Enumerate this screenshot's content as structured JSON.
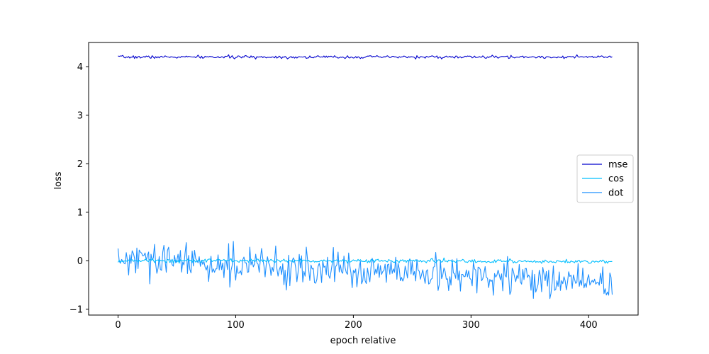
{
  "chart_data": {
    "type": "line",
    "title": "",
    "xlabel": "epoch relative",
    "ylabel": "loss",
    "xlim": [
      -25,
      442
    ],
    "ylim": [
      -1.12,
      4.5
    ],
    "xticks": [
      0,
      100,
      200,
      300,
      400
    ],
    "yticks": [
      -1,
      0,
      1,
      2,
      3,
      4
    ],
    "xtick_labels": [
      "0",
      "100",
      "200",
      "300",
      "400"
    ],
    "ytick_labels": [
      "−1",
      "0",
      "1",
      "2",
      "3",
      "4"
    ],
    "grid": false,
    "legend": {
      "placement": "center-right",
      "entries": [
        "mse",
        "cos",
        "dot"
      ]
    },
    "n_points": 421,
    "series": [
      {
        "name": "mse",
        "color": "#0000cd",
        "x_range": [
          0,
          420
        ],
        "approx_trend": {
          "x": [
            0,
            100,
            200,
            300,
            420
          ],
          "y": [
            4.2,
            4.2,
            4.2,
            4.2,
            4.2
          ]
        },
        "noise_amplitude": 0.015
      },
      {
        "name": "cos",
        "color": "#00bfff",
        "x_range": [
          0,
          420
        ],
        "approx_trend": {
          "x": [
            0,
            100,
            200,
            300,
            420
          ],
          "y": [
            0.0,
            0.0,
            0.0,
            -0.01,
            -0.02
          ]
        },
        "noise_amplitude": 0.02
      },
      {
        "name": "dot",
        "color": "#1e90ff",
        "x_range": [
          0,
          420
        ],
        "approx_trend": {
          "x": [
            0,
            50,
            100,
            150,
            200,
            250,
            300,
            350,
            420
          ],
          "y": [
            0.0,
            -0.02,
            -0.08,
            -0.15,
            -0.22,
            -0.28,
            -0.33,
            -0.38,
            -0.45
          ]
        },
        "noise_amplitude": 0.18
      }
    ]
  }
}
